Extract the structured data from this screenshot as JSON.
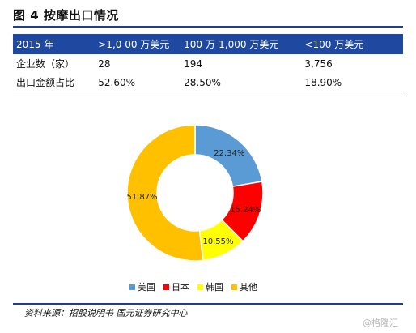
{
  "title": "图 4  按摩出口情况",
  "table": {
    "headers": [
      "2015 年",
      ">1,0 00 万美元",
      "100 万-1,000 万美元",
      "<100 万美元"
    ],
    "rows": [
      [
        "企业数（家）",
        "28",
        "194",
        "3,756"
      ],
      [
        "出口金额占比",
        "52.60%",
        "28.50%",
        "18.90%"
      ]
    ]
  },
  "chart_data": {
    "type": "pie",
    "donut": true,
    "labels": [
      "美国",
      "日本",
      "韩国",
      "其他"
    ],
    "values": [
      22.34,
      15.24,
      10.55,
      51.87
    ],
    "value_labels": [
      "22.34%",
      "15.24%",
      "10.55%",
      "51.87%"
    ],
    "colors": [
      "#5b9bd5",
      "#ff0000",
      "#ffff00",
      "#ffc000"
    ],
    "legend_position": "bottom"
  },
  "source": "资料来源：招股说明书  国元证券研究中心",
  "watermark": "@格隆汇"
}
